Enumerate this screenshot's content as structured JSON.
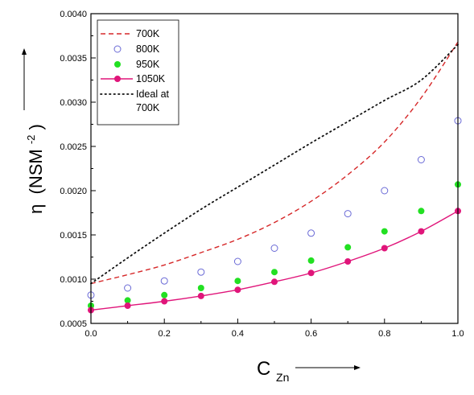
{
  "chart_data": {
    "type": "line",
    "xlabel": {
      "main": "C",
      "sub": "Zn"
    },
    "ylabel": {
      "symbol": "η",
      "unit_open": "(NSM",
      "unit_sup": "-2",
      "unit_close": ")"
    },
    "xlim": [
      0.0,
      1.0
    ],
    "ylim": [
      0.0005,
      0.004
    ],
    "x_ticks": [
      0.0,
      0.2,
      0.4,
      0.6,
      0.8,
      1.0
    ],
    "x_tick_labels": [
      "0.0",
      "0.2",
      "0.4",
      "0.6",
      "0.8",
      "1.0"
    ],
    "y_ticks": [
      0.0005,
      0.001,
      0.0015,
      0.002,
      0.0025,
      0.003,
      0.0035,
      0.004
    ],
    "y_tick_labels": [
      "0.0005",
      "0.0010",
      "0.0015",
      "0.0020",
      "0.0025",
      "0.0030",
      "0.0035",
      "0.0040"
    ],
    "grid": false,
    "legend_position": "top-left",
    "series": [
      {
        "name": "700K",
        "style": "dashed-line",
        "color": "#d62728",
        "x": [
          0.0,
          0.1,
          0.2,
          0.3,
          0.4,
          0.5,
          0.6,
          0.7,
          0.8,
          0.9,
          1.0
        ],
        "y": [
          0.00095,
          0.00105,
          0.00116,
          0.0013,
          0.00145,
          0.00164,
          0.00188,
          0.00218,
          0.00255,
          0.00305,
          0.00368
        ]
      },
      {
        "name": "800K",
        "style": "open-circles",
        "color": "#6a6ad6",
        "x": [
          0.0,
          0.1,
          0.2,
          0.3,
          0.4,
          0.5,
          0.6,
          0.7,
          0.8,
          0.9,
          1.0
        ],
        "y": [
          0.00082,
          0.0009,
          0.00098,
          0.00108,
          0.0012,
          0.00135,
          0.00152,
          0.00174,
          0.002,
          0.00235,
          0.00279
        ]
      },
      {
        "name": "950K",
        "style": "filled-circles",
        "color": "#22e022",
        "x": [
          0.0,
          0.1,
          0.2,
          0.3,
          0.4,
          0.5,
          0.6,
          0.7,
          0.8,
          0.9,
          1.0
        ],
        "y": [
          0.0007,
          0.00076,
          0.00082,
          0.0009,
          0.00098,
          0.00108,
          0.00121,
          0.00136,
          0.00154,
          0.00177,
          0.00207
        ]
      },
      {
        "name": "1050K",
        "style": "line-with-filled-circles",
        "color": "#e0157a",
        "x": [
          0.0,
          0.1,
          0.2,
          0.3,
          0.4,
          0.5,
          0.6,
          0.7,
          0.8,
          0.9,
          1.0
        ],
        "y": [
          0.00065,
          0.0007,
          0.00075,
          0.00081,
          0.00088,
          0.00097,
          0.00107,
          0.0012,
          0.00135,
          0.00154,
          0.00177
        ]
      },
      {
        "name": "Ideal at 700K",
        "legend_lines": [
          "Ideal at",
          "700K"
        ],
        "style": "dotted-line",
        "color": "#111111",
        "x": [
          0.0,
          0.1,
          0.2,
          0.3,
          0.4,
          0.5,
          0.6,
          0.7,
          0.8,
          0.9,
          1.0
        ],
        "y": [
          0.00095,
          0.00124,
          0.00152,
          0.00179,
          0.00204,
          0.00229,
          0.00254,
          0.00278,
          0.00302,
          0.00325,
          0.00365
        ]
      }
    ]
  }
}
